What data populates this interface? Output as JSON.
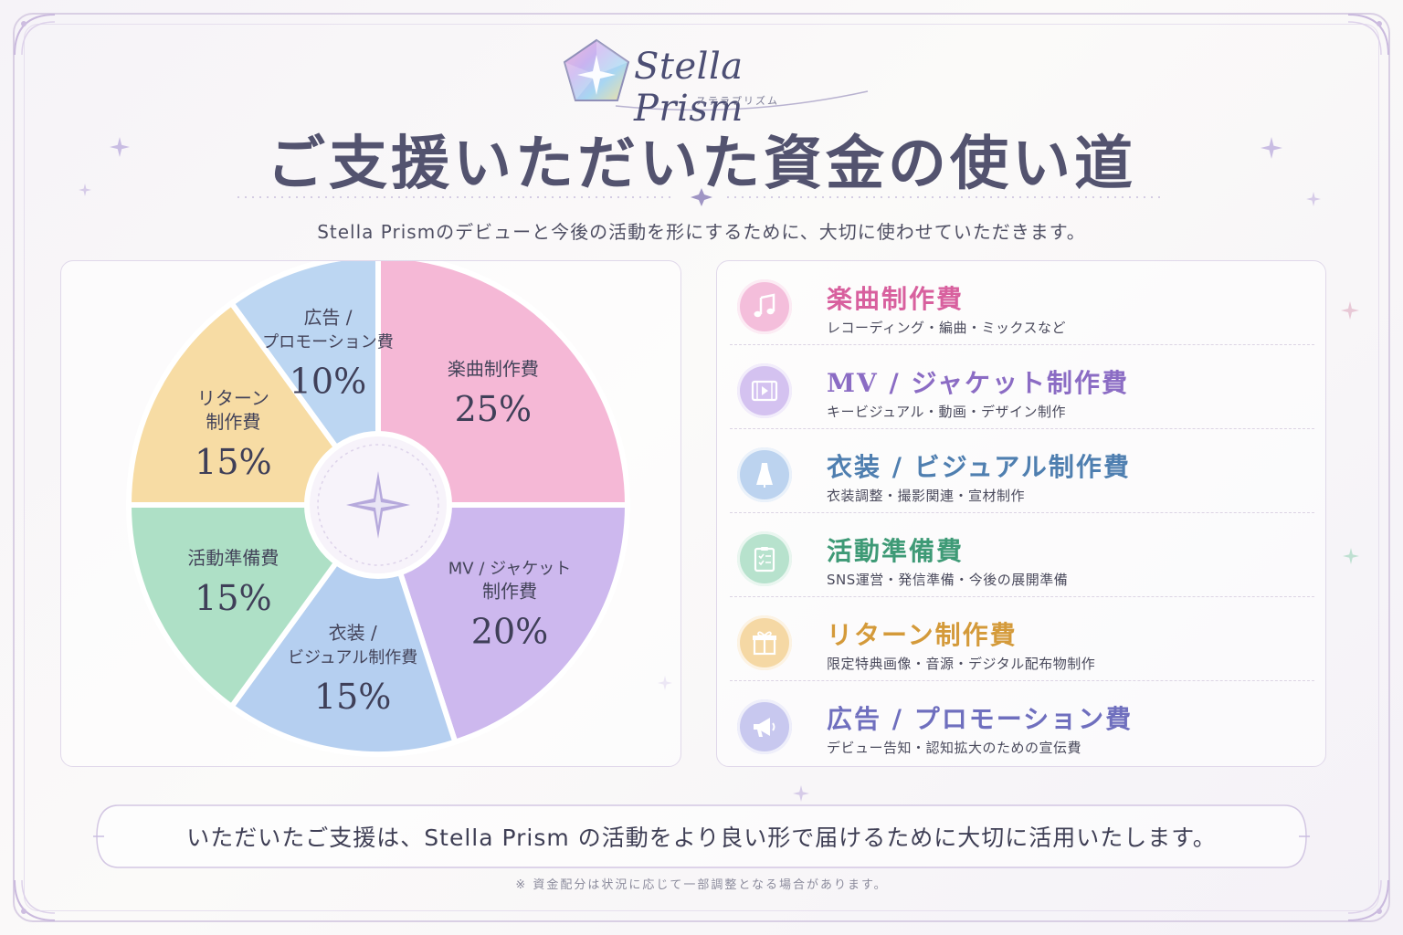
{
  "brand": {
    "name": "Stella Prism",
    "ruby": "ステラプリズム"
  },
  "header": {
    "title": "ご支援いただいた資金の使い道",
    "subtitle": "Stella Prismのデビューと今後の活動を形にするために、大切に使わせていただきます。"
  },
  "chart_data": {
    "type": "pie",
    "categories": [
      "楽曲制作費",
      "MV / ジャケット制作費",
      "衣装 / ビジュアル制作費",
      "活動準備費",
      "リターン制作費",
      "広告 / プロモーション費"
    ],
    "values": [
      25,
      20,
      15,
      15,
      15,
      10
    ],
    "slices": [
      {
        "label_lines": [
          "楽曲制作費"
        ],
        "pct": "25%",
        "color": "#f5b8d6"
      },
      {
        "label_lines": [
          "MV / ジャケット",
          "制作費"
        ],
        "pct": "20%",
        "color": "#cdb8ee"
      },
      {
        "label_lines": [
          "衣装 /",
          "ビジュアル制作費"
        ],
        "pct": "15%",
        "color": "#b5cff0"
      },
      {
        "label_lines": [
          "活動準備費"
        ],
        "pct": "15%",
        "color": "#aee0c6"
      },
      {
        "label_lines": [
          "リターン",
          "制作費"
        ],
        "pct": "15%",
        "color": "#f7dca4"
      },
      {
        "label_lines": [
          "広告 /",
          "プロモーション費"
        ],
        "pct": "10%",
        "color": "#bcd6f2"
      }
    ],
    "unit": "%"
  },
  "items": [
    {
      "title": "楽曲制作費",
      "desc": "レコーディング・編曲・ミックスなど",
      "color": "#d8609e",
      "icon_bg": "#f4bedb",
      "icon": "music-note-icon"
    },
    {
      "title": "MV / ジャケット制作費",
      "desc": "キービジュアル・動画・デザイン制作",
      "color": "#8b6cc4",
      "icon_bg": "#d4c2f0",
      "icon": "film-icon"
    },
    {
      "title": "衣装 / ビジュアル制作費",
      "desc": "衣装調整・撮影関連・宣材制作",
      "color": "#4f7fb0",
      "icon_bg": "#bcd3ef",
      "icon": "dress-icon"
    },
    {
      "title": "活動準備費",
      "desc": "SNS運営・発信準備・今後の展開準備",
      "color": "#3e9a76",
      "icon_bg": "#b7e2cd",
      "icon": "clipboard-icon"
    },
    {
      "title": "リターン制作費",
      "desc": "限定特典画像・音源・デジタル配布物制作",
      "color": "#d49a3a",
      "icon_bg": "#f5d8a4",
      "icon": "gift-icon"
    },
    {
      "title": "広告 / プロモーション費",
      "desc": "デビュー告知・認知拡大のための宣伝費",
      "color": "#6f6fbe",
      "icon_bg": "#c8c8ef",
      "icon": "megaphone-icon"
    }
  ],
  "footer": {
    "message": "いただいたご支援は、Stella Prism の活動をより良い形で届けるために大切に活用いたします。",
    "note": "※ 資金配分は状況に応じて一部調整となる場合があります。"
  }
}
